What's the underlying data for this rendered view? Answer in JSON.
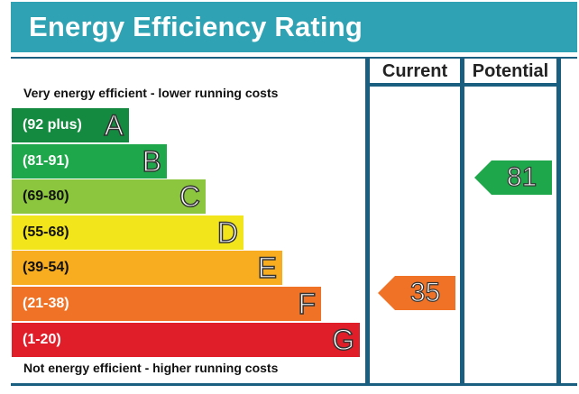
{
  "header": {
    "title": "Energy Efficiency Rating"
  },
  "columns": {
    "current_label": "Current",
    "potential_label": "Potential"
  },
  "captions": {
    "top": "Very energy efficient - lower running costs",
    "bottom": "Not energy efficient - higher running costs"
  },
  "bands": [
    {
      "range": "(92 plus)",
      "letter": "A",
      "color": "#138a3f"
    },
    {
      "range": "(81-91)",
      "letter": "B",
      "color": "#1fa84b"
    },
    {
      "range": "(69-80)",
      "letter": "C",
      "color": "#8cc63f"
    },
    {
      "range": "(55-68)",
      "letter": "D",
      "color": "#f2e51c"
    },
    {
      "range": "(39-54)",
      "letter": "E",
      "color": "#f7ad1f"
    },
    {
      "range": "(21-38)",
      "letter": "F",
      "color": "#ef7227"
    },
    {
      "range": "(1-20)",
      "letter": "G",
      "color": "#e01e2a"
    }
  ],
  "ratings": {
    "current": {
      "value": "35",
      "band": "F",
      "color": "#ef7227"
    },
    "potential": {
      "value": "81",
      "band": "B",
      "color": "#1fa84b"
    }
  },
  "colors": {
    "title_bar": "#2fa3b3",
    "frame": "#1b5f80"
  }
}
